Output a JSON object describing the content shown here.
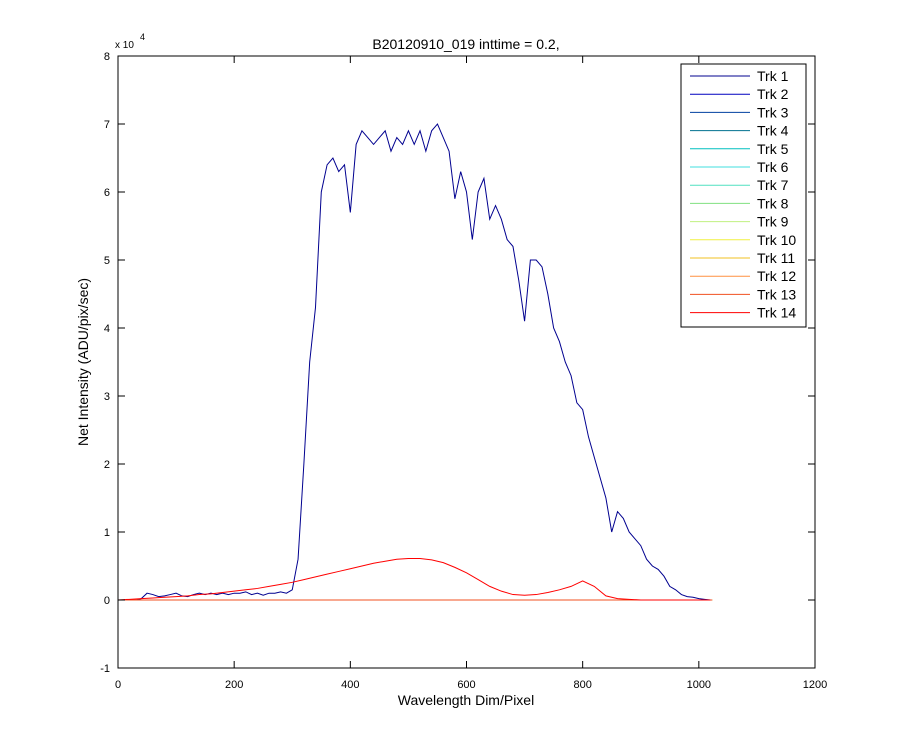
{
  "chart_data": {
    "type": "line",
    "title": "B20120910_019 inttime = 0.2,",
    "x_label": "Wavelength Dim/Pixel",
    "y_label": "Net Intensity (ADU/pix/sec)",
    "y_exponent": {
      "base": "x 10",
      "power": "4"
    },
    "xlim": [
      0,
      1200
    ],
    "xticks": [
      0,
      200,
      400,
      600,
      800,
      1000,
      1200
    ],
    "ylim": [
      -1,
      8
    ],
    "yticks": [
      -1,
      0,
      1,
      2,
      3,
      4,
      5,
      6,
      7,
      8
    ],
    "grid": false,
    "legend": "top-right",
    "series": [
      {
        "name": "Trk 1",
        "color": "#00008f",
        "x": [
          0,
          10,
          20,
          30,
          40,
          50,
          60,
          70,
          80,
          90,
          100,
          110,
          120,
          130,
          140,
          150,
          160,
          170,
          180,
          190,
          200,
          210,
          220,
          230,
          240,
          250,
          260,
          270,
          280,
          290,
          300,
          310,
          320,
          330,
          340,
          350,
          360,
          370,
          380,
          390,
          400,
          410,
          420,
          430,
          440,
          450,
          460,
          470,
          480,
          490,
          500,
          510,
          520,
          530,
          540,
          550,
          560,
          570,
          580,
          590,
          600,
          610,
          620,
          630,
          640,
          650,
          660,
          670,
          680,
          690,
          700,
          710,
          720,
          730,
          740,
          750,
          760,
          770,
          780,
          790,
          800,
          810,
          820,
          830,
          840,
          850,
          860,
          870,
          880,
          890,
          900,
          910,
          920,
          930,
          940,
          950,
          960,
          970,
          980,
          990,
          1000,
          1010,
          1020
        ],
        "values": [
          0,
          0,
          0,
          0,
          0.02,
          0.1,
          0.08,
          0.05,
          0.06,
          0.08,
          0.1,
          0.06,
          0.05,
          0.08,
          0.1,
          0.08,
          0.1,
          0.08,
          0.1,
          0.08,
          0.1,
          0.1,
          0.12,
          0.08,
          0.1,
          0.07,
          0.1,
          0.1,
          0.12,
          0.1,
          0.15,
          0.6,
          2.0,
          3.5,
          4.3,
          6.0,
          6.4,
          6.5,
          6.3,
          6.4,
          5.7,
          6.7,
          6.9,
          6.8,
          6.7,
          6.8,
          6.9,
          6.6,
          6.8,
          6.7,
          6.9,
          6.7,
          6.9,
          6.6,
          6.9,
          7.0,
          6.8,
          6.6,
          5.9,
          6.3,
          6.0,
          5.3,
          6.0,
          6.2,
          5.6,
          5.8,
          5.6,
          5.3,
          5.2,
          4.7,
          4.1,
          5.0,
          5.0,
          4.9,
          4.5,
          4.0,
          3.8,
          3.5,
          3.3,
          2.9,
          2.8,
          2.4,
          2.1,
          1.8,
          1.5,
          1.0,
          1.3,
          1.2,
          1.0,
          0.9,
          0.8,
          0.6,
          0.5,
          0.45,
          0.35,
          0.2,
          0.15,
          0.08,
          0.05,
          0.04,
          0.02,
          0.01,
          0
        ]
      },
      {
        "name": "Trk 2",
        "color": "#0000bf",
        "x": [
          0,
          1023
        ],
        "values": [
          0,
          0
        ]
      },
      {
        "name": "Trk 3",
        "color": "#0040a0",
        "x": [
          0,
          1023
        ],
        "values": [
          0,
          0
        ]
      },
      {
        "name": "Trk 4",
        "color": "#00708f",
        "x": [
          0,
          1023
        ],
        "values": [
          0,
          0
        ]
      },
      {
        "name": "Trk 5",
        "color": "#00bfbf",
        "x": [
          0,
          1023
        ],
        "values": [
          0,
          0
        ]
      },
      {
        "name": "Trk 6",
        "color": "#40dfdf",
        "x": [
          0,
          1023
        ],
        "values": [
          0,
          0
        ]
      },
      {
        "name": "Trk 7",
        "color": "#50e0c0",
        "x": [
          0,
          1023
        ],
        "values": [
          0,
          0
        ]
      },
      {
        "name": "Trk 8",
        "color": "#80e080",
        "x": [
          0,
          1023
        ],
        "values": [
          0,
          0
        ]
      },
      {
        "name": "Trk 9",
        "color": "#c0f080",
        "x": [
          0,
          1023
        ],
        "values": [
          0,
          0
        ]
      },
      {
        "name": "Trk 10",
        "color": "#f0f040",
        "x": [
          0,
          1023
        ],
        "values": [
          0,
          0
        ]
      },
      {
        "name": "Trk 11",
        "color": "#f0c020",
        "x": [
          0,
          1023
        ],
        "values": [
          0,
          0
        ]
      },
      {
        "name": "Trk 12",
        "color": "#ff9040",
        "x": [
          0,
          1023
        ],
        "values": [
          0,
          0
        ]
      },
      {
        "name": "Trk 13",
        "color": "#f05020",
        "x": [
          0,
          1023
        ],
        "values": [
          0,
          0
        ]
      },
      {
        "name": "Trk 14",
        "color": "#ff0000",
        "x": [
          0,
          20,
          40,
          60,
          80,
          100,
          120,
          140,
          160,
          180,
          200,
          220,
          240,
          260,
          280,
          300,
          320,
          340,
          360,
          380,
          400,
          420,
          440,
          460,
          480,
          500,
          520,
          540,
          560,
          580,
          600,
          620,
          640,
          660,
          680,
          700,
          720,
          740,
          760,
          780,
          800,
          820,
          840,
          860,
          880,
          900,
          920,
          940,
          960,
          980,
          1000,
          1020
        ],
        "values": [
          0,
          0.01,
          0.02,
          0.03,
          0.04,
          0.05,
          0.06,
          0.08,
          0.09,
          0.11,
          0.13,
          0.15,
          0.17,
          0.2,
          0.23,
          0.26,
          0.3,
          0.34,
          0.38,
          0.42,
          0.46,
          0.5,
          0.54,
          0.57,
          0.6,
          0.61,
          0.61,
          0.59,
          0.55,
          0.48,
          0.4,
          0.3,
          0.2,
          0.13,
          0.08,
          0.07,
          0.08,
          0.11,
          0.15,
          0.2,
          0.28,
          0.2,
          0.06,
          0.02,
          0.01,
          0,
          0,
          0,
          0,
          0,
          0,
          0
        ]
      }
    ]
  }
}
